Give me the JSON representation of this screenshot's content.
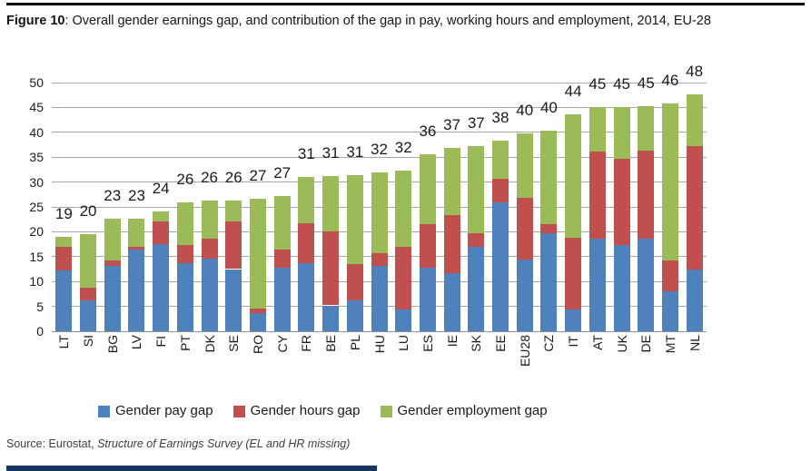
{
  "title": {
    "figure_label": "Figure 10",
    "rest": ": Overall gender earnings gap, and contribution of the gap in pay, working hours and employment, 2014, EU-28"
  },
  "source": {
    "prefix": "Source: Eurostat, ",
    "italic": "Structure of Earnings Survey (EL and HR missing)"
  },
  "chart_data": {
    "type": "bar",
    "stacked": true,
    "title": "Overall gender earnings gap, and contribution of the gap in pay, working hours and employment, 2014, EU-28",
    "xlabel": "",
    "ylabel": "",
    "ylim": [
      0,
      50
    ],
    "yticks": [
      0,
      5,
      10,
      15,
      20,
      25,
      30,
      35,
      40,
      45,
      50
    ],
    "grid": true,
    "legend_position": "bottom",
    "categories": [
      "LT",
      "SI",
      "BG",
      "LV",
      "FI",
      "PT",
      "DK",
      "SE",
      "RO",
      "CY",
      "FR",
      "BE",
      "PL",
      "HU",
      "LU",
      "ES",
      "IE",
      "SK",
      "EE",
      "EU28",
      "CZ",
      "IT",
      "AT",
      "UK",
      "DE",
      "MT",
      "NL"
    ],
    "series": [
      {
        "name": "Gender pay gap",
        "color": "#4F81BD",
        "values": [
          12.3,
          6.2,
          13.2,
          16.5,
          17.5,
          13.6,
          14.6,
          12.5,
          3.6,
          12.7,
          13.7,
          5.2,
          6.2,
          13.2,
          4.3,
          12.7,
          11.6,
          17.0,
          26.0,
          14.5,
          19.7,
          4.4,
          18.6,
          17.4,
          18.7,
          8.0,
          12.4
        ]
      },
      {
        "name": "Gender hours gap",
        "color": "#C0504D",
        "values": [
          4.6,
          2.6,
          1.0,
          0.5,
          4.5,
          3.8,
          4.1,
          9.5,
          1.0,
          3.7,
          8.0,
          14.9,
          7.3,
          2.5,
          12.7,
          8.9,
          11.7,
          2.7,
          4.7,
          12.3,
          1.9,
          14.4,
          17.6,
          17.3,
          17.6,
          6.2,
          24.9
        ]
      },
      {
        "name": "Gender employment gap",
        "color": "#9BBB59",
        "values": [
          2.1,
          10.8,
          8.4,
          5.6,
          2.1,
          8.6,
          7.5,
          4.3,
          22.0,
          10.8,
          9.4,
          11.1,
          17.9,
          16.2,
          15.3,
          14.0,
          13.5,
          17.6,
          7.7,
          12.9,
          18.7,
          24.9,
          8.8,
          10.3,
          9.0,
          31.6,
          10.3
        ]
      }
    ],
    "total_labels": [
      19,
      20,
      23,
      23,
      24,
      26,
      26,
      26,
      27,
      27,
      31,
      31,
      31,
      32,
      32,
      36,
      37,
      37,
      38,
      40,
      40,
      44,
      45,
      45,
      45,
      46,
      48
    ]
  }
}
